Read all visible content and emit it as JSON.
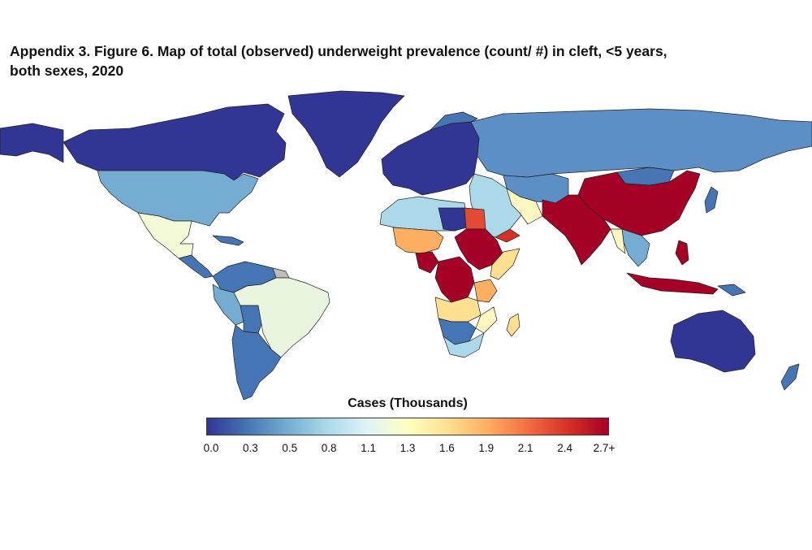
{
  "figure": {
    "title_line1": "Appendix 3. Figure 6. Map of total (observed) underweight prevalence (count/ #) in cleft, <5 years,",
    "title_line2": "both sexes, 2020"
  },
  "legend": {
    "title": "Cases (Thousands)",
    "ticks": [
      "0.0",
      "0.3",
      "0.5",
      "0.8",
      "1.1",
      "1.3",
      "1.6",
      "1.9",
      "2.1",
      "2.4",
      "2.7+"
    ],
    "color_stops": [
      "#313695",
      "#4575b4",
      "#74add1",
      "#abd9e9",
      "#e0f3f8",
      "#ffffbf",
      "#fee090",
      "#fdae61",
      "#f46d43",
      "#d73027",
      "#a50026"
    ]
  },
  "colors": {
    "background": "#ffffff",
    "border": "#222222",
    "no_data": "#bdbdbd"
  }
}
